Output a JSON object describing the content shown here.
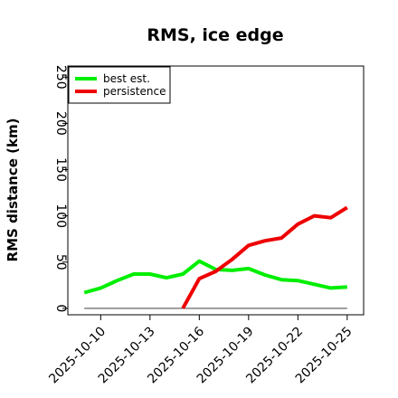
{
  "chart_data": {
    "type": "line",
    "title": "RMS, ice edge",
    "xlabel": "",
    "ylabel": "RMS distance (km)",
    "x_tick_labels": [
      "2025-10-10",
      "2025-10-13",
      "2025-10-16",
      "2025-10-19",
      "2025-10-22",
      "2025-10-25"
    ],
    "x": [
      "2025-10-09",
      "2025-10-10",
      "2025-10-11",
      "2025-10-12",
      "2025-10-13",
      "2025-10-14",
      "2025-10-15",
      "2025-10-16",
      "2025-10-17",
      "2025-10-18",
      "2025-10-19",
      "2025-10-20",
      "2025-10-21",
      "2025-10-22",
      "2025-10-23",
      "2025-10-24",
      "2025-10-25"
    ],
    "xlim": [
      "2025-10-08",
      "2025-10-26"
    ],
    "ylim": [
      -7,
      262
    ],
    "y_ticks": [
      0,
      50,
      100,
      150,
      200,
      250
    ],
    "grid": false,
    "legend_position": "top-left",
    "series": [
      {
        "name": "best est.",
        "color": "#00ee00",
        "values": [
          17,
          22,
          30,
          37,
          37,
          33,
          37,
          51,
          42,
          41,
          43,
          36,
          31,
          30,
          26,
          22,
          23
        ]
      },
      {
        "name": "persistence",
        "color": "#ee0000",
        "values": [
          null,
          null,
          null,
          null,
          null,
          null,
          0,
          32,
          40,
          53,
          68,
          73,
          76,
          91,
          100,
          98,
          109
        ]
      }
    ],
    "reference_line": {
      "y": 0,
      "color": "#808080"
    }
  }
}
